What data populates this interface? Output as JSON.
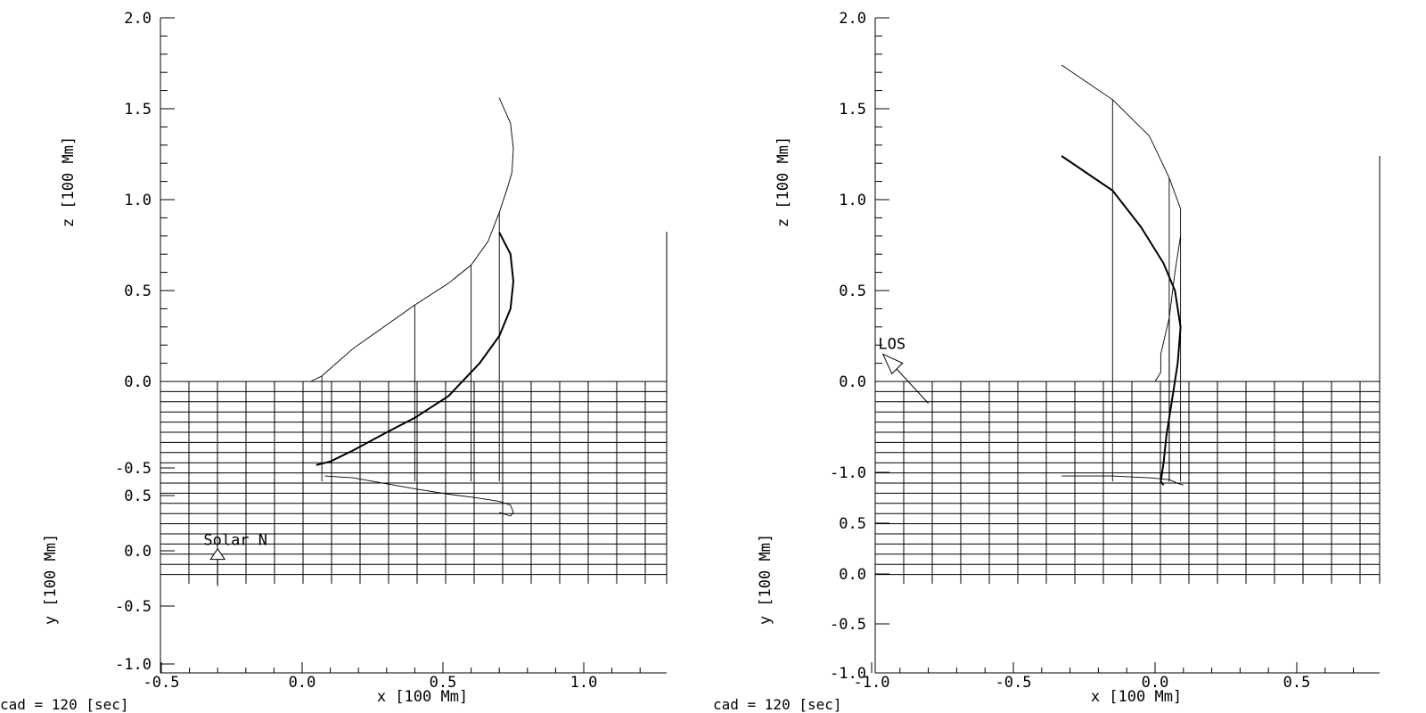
{
  "chart_data": [
    {
      "type": "line",
      "panel": "left",
      "top_axis": {
        "label": "z [100 Mm]",
        "ylim": [
          0.0,
          2.0
        ],
        "ticks": [
          "0.0",
          "0.5",
          "1.0",
          "1.5",
          "2.0"
        ]
      },
      "bottom_axis": {
        "label": "y [100 Mm]",
        "ticks": [
          "-1.0",
          "-0.5",
          "0.0",
          "0.5",
          "-0.5"
        ]
      },
      "xlabel": "x [100 Mm]",
      "xlim": [
        -0.5,
        1.3
      ],
      "xticks": [
        "-0.5",
        "0.0",
        "0.5",
        "1.0"
      ],
      "series": [
        {
          "x": [
            0.03,
            0.07,
            0.18,
            0.4,
            0.52,
            0.6,
            0.66,
            0.7,
            0.73,
            0.745,
            0.75,
            0.74,
            0.7
          ],
          "z": [
            0.0,
            0.03,
            0.18,
            0.42,
            0.54,
            0.64,
            0.77,
            0.93,
            1.07,
            1.15,
            1.28,
            1.42,
            1.56
          ]
        },
        {
          "x": [
            0.7,
            0.74,
            0.75,
            0.74,
            0.7,
            0.63,
            0.52,
            0.4,
            0.3,
            0.18,
            0.1,
            0.05
          ],
          "z": [
            0.82,
            0.7,
            0.55,
            0.4,
            0.25,
            0.1,
            -0.08,
            -0.2,
            -0.28,
            -0.38,
            -0.44,
            -0.46
          ]
        },
        {
          "x": [
            0.08,
            0.18,
            0.4,
            0.52,
            0.62,
            0.7,
            0.74,
            0.75,
            0.74,
            0.7
          ],
          "z": [
            -0.52,
            -0.53,
            -0.59,
            -0.62,
            -0.64,
            -0.66,
            -0.68,
            -0.72,
            -0.74,
            -0.72
          ]
        }
      ],
      "annotation": "Solar N"
    },
    {
      "type": "line",
      "panel": "right",
      "top_axis": {
        "label": "z [100 Mm]",
        "ylim": [
          0.0,
          2.0
        ],
        "ticks": [
          "0.0",
          "0.5",
          "1.0",
          "1.5",
          "2.0"
        ]
      },
      "bottom_axis": {
        "label": "y [100 Mm]",
        "ticks": [
          "-1.0",
          "-0.5",
          "0.0",
          "0.5",
          "-1.0"
        ]
      },
      "xlabel": "x [100 Mm]",
      "xlim": [
        -1.0,
        0.9
      ],
      "xticks": [
        "-1.0",
        "-0.5",
        "0.0",
        "0.5"
      ],
      "series": [
        {
          "x": [
            -0.33,
            -0.15,
            -0.02,
            0.05,
            0.09,
            0.09,
            0.07,
            0.05,
            0.02,
            0.02,
            0.0
          ],
          "z": [
            1.74,
            1.55,
            1.35,
            1.12,
            0.95,
            0.8,
            0.6,
            0.35,
            0.15,
            0.05,
            0.0
          ]
        },
        {
          "x": [
            -0.33,
            -0.15,
            -0.05,
            0.03,
            0.07,
            0.09,
            0.08,
            0.06,
            0.04,
            0.03,
            0.02,
            0.03
          ],
          "z": [
            1.24,
            1.05,
            0.85,
            0.65,
            0.5,
            0.3,
            0.1,
            -0.1,
            -0.3,
            -0.45,
            -0.55,
            -0.57
          ]
        },
        {
          "x": [
            -0.33,
            -0.15,
            -0.02,
            0.05,
            0.08,
            0.1
          ],
          "z": [
            -0.52,
            -0.52,
            -0.53,
            -0.54,
            -0.56,
            -0.57
          ]
        }
      ],
      "annotation": "LOS"
    }
  ],
  "footer": {
    "left_cad": "cad =  120 [sec]",
    "right_cad": "cad =  120 [sec]"
  }
}
